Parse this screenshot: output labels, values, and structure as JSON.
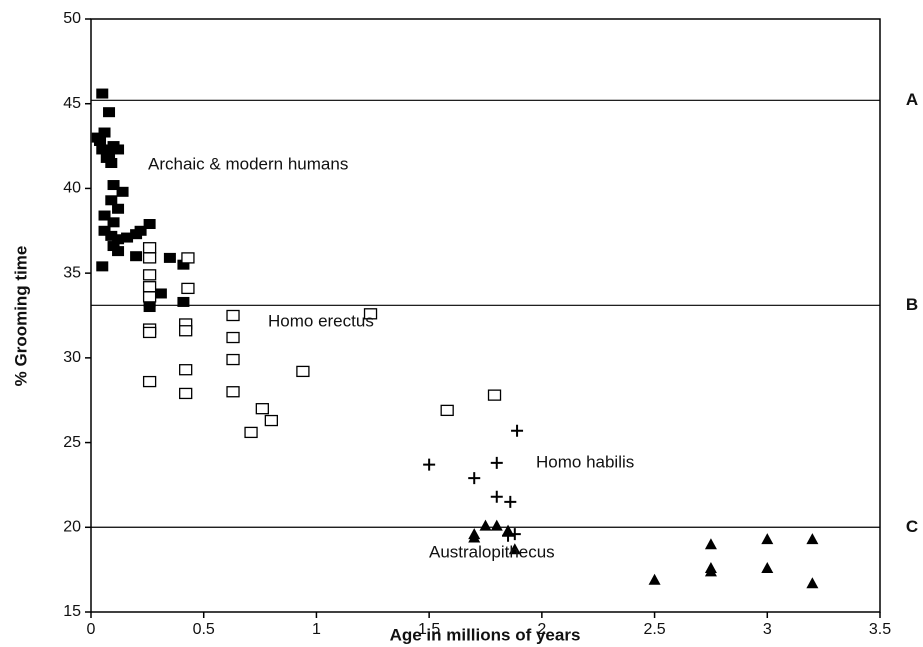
{
  "chart_data": {
    "type": "scatter",
    "xlabel": "Age in millions of years",
    "ylabel": "% Grooming time",
    "xlim": [
      0,
      3.5
    ],
    "xticks": [
      0,
      0.5,
      1,
      1.5,
      2,
      2.5,
      3,
      3.5
    ],
    "ylim": [
      15,
      50
    ],
    "yticks": [
      15,
      20,
      25,
      30,
      35,
      40,
      45,
      50
    ],
    "reference_lines": [
      {
        "value": 45.2,
        "label": "A"
      },
      {
        "value": 33.1,
        "label": "B"
      },
      {
        "value": 20,
        "label": "C"
      }
    ],
    "series": [
      {
        "name": "Archaic & modern humans",
        "marker": "filled-square",
        "color": "#000000",
        "x": [
          0.05,
          0.08,
          0.03,
          0.04,
          0.06,
          0.05,
          0.07,
          0.09,
          0.1,
          0.12,
          0.08,
          0.1,
          0.14,
          0.09,
          0.12,
          0.06,
          0.1,
          0.06,
          0.09,
          0.12,
          0.1,
          0.12,
          0.16,
          0.2,
          0.22,
          0.26,
          0.2,
          0.05,
          0.35,
          0.41,
          0.31,
          0.26,
          0.41,
          0.26
        ],
        "values": [
          45.6,
          44.5,
          43,
          42.8,
          43.3,
          42.3,
          41.8,
          41.5,
          42.5,
          42.3,
          42,
          40.2,
          39.8,
          39.3,
          38.8,
          38.4,
          38,
          37.5,
          37.2,
          37,
          36.6,
          36.3,
          37.1,
          37.3,
          37.5,
          37.9,
          36,
          35.4,
          35.9,
          35.5,
          33.8,
          33.3,
          33.3,
          33
        ]
      },
      {
        "name": "Homo erectus",
        "marker": "open-square",
        "color": "#000000",
        "x": [
          0.26,
          0.26,
          0.26,
          0.26,
          0.26,
          0.43,
          0.43,
          0.42,
          0.42,
          0.26,
          0.26,
          0.63,
          0.63,
          0.63,
          0.42,
          0.26,
          0.42,
          0.63,
          0.76,
          0.8,
          0.71,
          0.94,
          1.24,
          1.58,
          1.79
        ],
        "values": [
          36.5,
          35.9,
          34.9,
          34.2,
          33.6,
          35.9,
          34.1,
          32,
          31.6,
          31.7,
          31.5,
          32.5,
          31.2,
          29.9,
          29.3,
          28.6,
          27.9,
          28,
          27,
          26.3,
          25.6,
          29.2,
          32.6,
          26.9,
          27.8
        ]
      },
      {
        "name": "Homo habilis",
        "marker": "plus",
        "color": "#000000",
        "x": [
          1.5,
          1.89,
          1.8,
          1.7,
          1.8,
          1.86,
          1.88,
          1.85
        ],
        "values": [
          23.7,
          25.7,
          23.8,
          22.9,
          21.8,
          21.5,
          19.6,
          19.5
        ]
      },
      {
        "name": "Australopithecus",
        "marker": "triangle",
        "color": "#000000",
        "x": [
          1.7,
          1.7,
          1.75,
          1.8,
          1.85,
          1.88,
          2.5,
          2.75,
          2.75,
          2.75,
          3,
          3,
          3.2,
          3.2
        ],
        "values": [
          19.6,
          19.4,
          20.1,
          20.1,
          19.8,
          18.7,
          16.9,
          19,
          17.6,
          17.4,
          19.3,
          17.6,
          19.3,
          16.7
        ]
      }
    ]
  }
}
